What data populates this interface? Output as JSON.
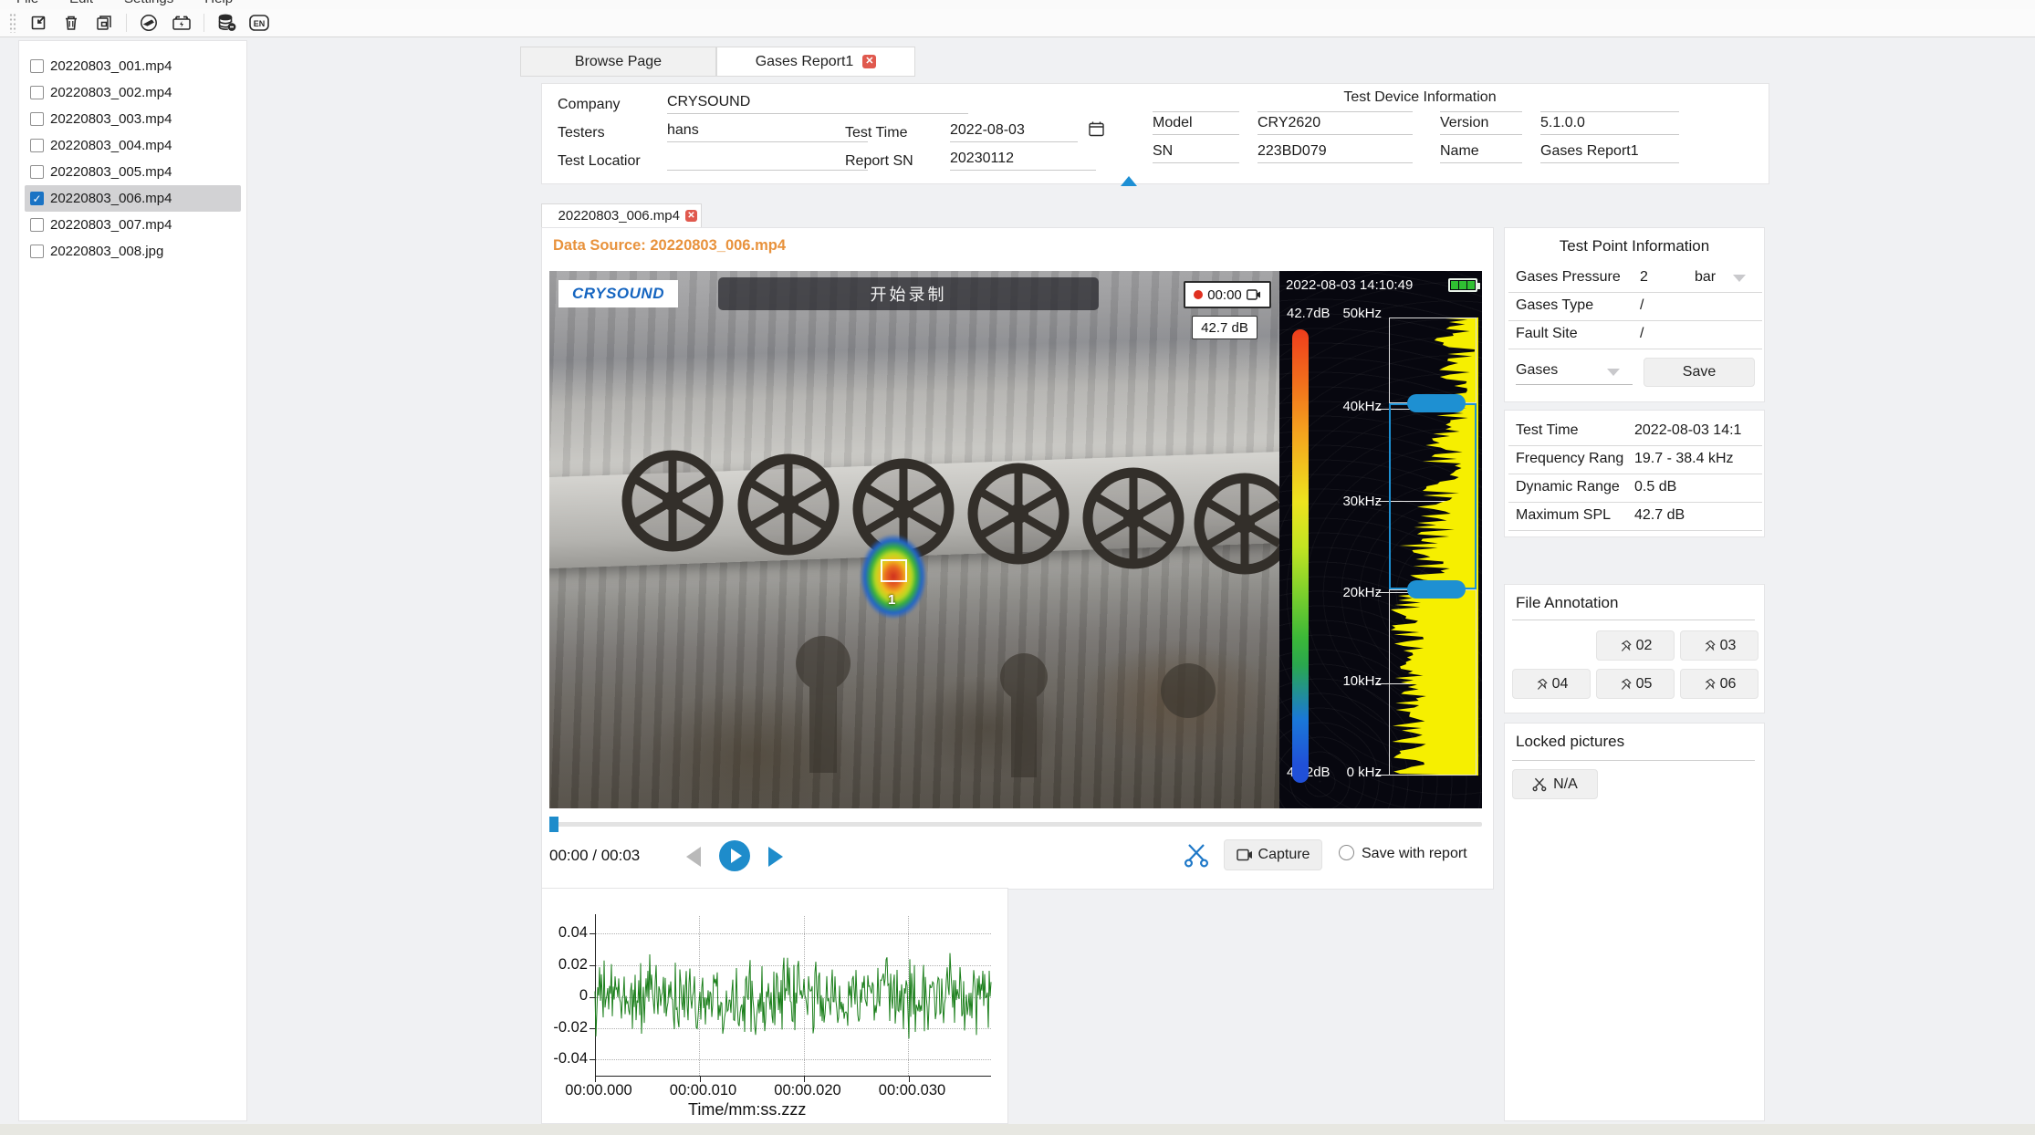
{
  "menu": {
    "items": [
      "File",
      "Edit",
      "Settings",
      "Help"
    ]
  },
  "toolbar": {
    "icons": [
      "import-icon",
      "delete-icon",
      "report-copy-icon",
      "device-connect-icon",
      "device-battery-icon",
      "database-clean-icon",
      "language-icon"
    ],
    "language_label": "EN"
  },
  "file_panel": {
    "items": [
      {
        "label": "20220803_001.mp4",
        "checked": false,
        "selected": false
      },
      {
        "label": "20220803_002.mp4",
        "checked": false,
        "selected": false
      },
      {
        "label": "20220803_003.mp4",
        "checked": false,
        "selected": false
      },
      {
        "label": "20220803_004.mp4",
        "checked": false,
        "selected": false
      },
      {
        "label": "20220803_005.mp4",
        "checked": false,
        "selected": false
      },
      {
        "label": "20220803_006.mp4",
        "checked": true,
        "selected": true
      },
      {
        "label": "20220803_007.mp4",
        "checked": false,
        "selected": false
      },
      {
        "label": "20220803_008.jpg",
        "checked": false,
        "selected": false
      }
    ]
  },
  "tabs": {
    "browse": "Browse Page",
    "report": "Gases Report1"
  },
  "report_form": {
    "company_label": "Company",
    "company_value": "CRYSOUND",
    "testers_label": "Testers",
    "testers_value": "hans",
    "location_label": "Test Locatior",
    "location_value": "",
    "test_time_label": "Test Time",
    "test_time_value": "2022-08-03",
    "report_sn_label": "Report SN",
    "report_sn_value": "20230112"
  },
  "device_info": {
    "title": "Test Device Information",
    "model_label": "Model",
    "model_value": "CRY2620",
    "version_label": "Version",
    "version_value": "5.1.0.0",
    "sn_label": "SN",
    "sn_value": "223BD079",
    "name_label": "Name",
    "name_value": "Gases Report1"
  },
  "video_tab_label": "20220803_006.mp4",
  "data_source_label": "Data Source: 20220803_006.mp4",
  "video": {
    "brand": "CRYSOUND",
    "record_button_label": "开始录制",
    "record_time": "00:00",
    "osd_timestamp": "2022-08-03 14:10:49",
    "spl_badge": "42.7 dB",
    "spot_marker": "1"
  },
  "spectrum": {
    "top_db": "42.7dB",
    "bottom_db": "42.2dB",
    "freq_labels": [
      "50kHz",
      "40kHz",
      "30kHz",
      "20kHz",
      "10kHz",
      "0 kHz"
    ],
    "selection_high": "38.4 kHz",
    "selection_low": "19.7 kHz",
    "bar_color": "#f6ef00"
  },
  "player": {
    "time_display": "00:00 / 00:03",
    "capture_label": "Capture",
    "save_radio_label": "Save with report"
  },
  "chart_data": {
    "type": "line",
    "title": "",
    "xlabel": "Time/mm:ss.zzz",
    "ylabel": "",
    "x_ticks": [
      "00:00.000",
      "00:00.010",
      "00:00.020",
      "00:00.030"
    ],
    "y_ticks": [
      "0.04",
      "0.02",
      "0",
      "-0.02",
      "-0.04"
    ],
    "ylim": [
      -0.055,
      0.055
    ],
    "x_range_seconds": [
      0,
      0.038
    ],
    "grid": "dotted",
    "legend": "none",
    "series": [
      {
        "name": "audio-waveform",
        "color": "#1b7f1b",
        "description": "dense random acoustic noise centered on 0, rms ~0.010, peaks ~±0.037"
      }
    ]
  },
  "test_point": {
    "title": "Test Point Information",
    "pressure_label": "Gases Pressure",
    "pressure_value": "2",
    "pressure_unit": "bar",
    "type_label": "Gases Type",
    "type_value": "/",
    "fault_label": "Fault Site",
    "fault_value": "/",
    "gases_label": "Gases",
    "save_label": "Save"
  },
  "measurement": {
    "rows": [
      {
        "label": "Test Time",
        "value": "2022-08-03 14:1"
      },
      {
        "label": "Frequency Rang",
        "value": "19.7 - 38.4 kHz"
      },
      {
        "label": "Dynamic Range",
        "value": "0.5 dB"
      },
      {
        "label": "Maximum SPL",
        "value": "42.7 dB"
      }
    ]
  },
  "file_annotation": {
    "title": "File Annotation",
    "buttons": [
      "02",
      "03",
      "04",
      "05",
      "06"
    ]
  },
  "locked_pictures": {
    "title": "Locked pictures",
    "button_label": "N/A"
  },
  "colors": {
    "accent_blue": "#1e8ccb",
    "checkbox_blue": "#1a73c4",
    "data_source_orange": "#e8923c",
    "close_red": "#e0594e",
    "waveform_green": "#1b7f1b",
    "spectrum_yellow": "#f6ef00",
    "selection_blue": "#1e90d2",
    "battery_green": "#2fc032"
  }
}
